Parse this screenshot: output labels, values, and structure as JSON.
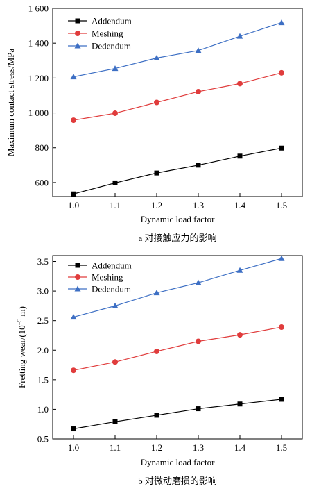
{
  "chart_data": [
    {
      "type": "line",
      "caption": "a 对接触应力的影响",
      "xlabel": "Dynamic load factor",
      "ylabel": "Maximum contact stress/MPa",
      "x": [
        1.0,
        1.1,
        1.2,
        1.3,
        1.4,
        1.5
      ],
      "x_ticks": [
        "1.0",
        "1.1",
        "1.2",
        "1.3",
        "1.4",
        "1.5"
      ],
      "xlim": [
        0.95,
        1.55
      ],
      "ylim": [
        520,
        1600
      ],
      "y_ticks": [
        {
          "value": 600,
          "label": "600"
        },
        {
          "value": 800,
          "label": "800"
        },
        {
          "value": 1000,
          "label": "1 000"
        },
        {
          "value": 1200,
          "label": "1 200"
        },
        {
          "value": 1400,
          "label": "1 400"
        },
        {
          "value": 1600,
          "label": "1 600"
        }
      ],
      "legend_position": "top-left",
      "grid": false,
      "series": [
        {
          "name": "Addendum",
          "color": "#000000",
          "marker": "square",
          "values": [
            535,
            598,
            655,
            700,
            752,
            798
          ]
        },
        {
          "name": "Meshing",
          "color": "#e03c3c",
          "marker": "circle",
          "values": [
            958,
            998,
            1060,
            1122,
            1168,
            1230
          ]
        },
        {
          "name": "Dedendum",
          "color": "#3d6fc4",
          "marker": "triangle",
          "values": [
            1207,
            1255,
            1315,
            1358,
            1440,
            1518
          ]
        }
      ]
    },
    {
      "type": "line",
      "caption": "b 对微动磨损的影响",
      "xlabel": "Dynamic load factor",
      "ylabel_main": "Fretting wear/(10",
      "ylabel_sup": "−5",
      "ylabel_end": " m)",
      "x": [
        1.0,
        1.1,
        1.2,
        1.3,
        1.4,
        1.5
      ],
      "x_ticks": [
        "1.0",
        "1.1",
        "1.2",
        "1.3",
        "1.4",
        "1.5"
      ],
      "xlim": [
        0.95,
        1.55
      ],
      "ylim": [
        0.5,
        3.6
      ],
      "y_ticks": [
        {
          "value": 0.5,
          "label": "0.5"
        },
        {
          "value": 1.0,
          "label": "1.0"
        },
        {
          "value": 1.5,
          "label": "1.5"
        },
        {
          "value": 2.0,
          "label": "2.0"
        },
        {
          "value": 2.5,
          "label": "2.5"
        },
        {
          "value": 3.0,
          "label": "3.0"
        },
        {
          "value": 3.5,
          "label": "3.5"
        }
      ],
      "legend_position": "top-left",
      "grid": false,
      "series": [
        {
          "name": "Addendum",
          "color": "#000000",
          "marker": "square",
          "values": [
            0.67,
            0.79,
            0.9,
            1.01,
            1.09,
            1.17
          ]
        },
        {
          "name": "Meshing",
          "color": "#e03c3c",
          "marker": "circle",
          "values": [
            1.66,
            1.8,
            1.98,
            2.15,
            2.26,
            2.39
          ]
        },
        {
          "name": "Dedendum",
          "color": "#3d6fc4",
          "marker": "triangle",
          "values": [
            2.56,
            2.75,
            2.97,
            3.14,
            3.35,
            3.55
          ]
        }
      ]
    }
  ]
}
